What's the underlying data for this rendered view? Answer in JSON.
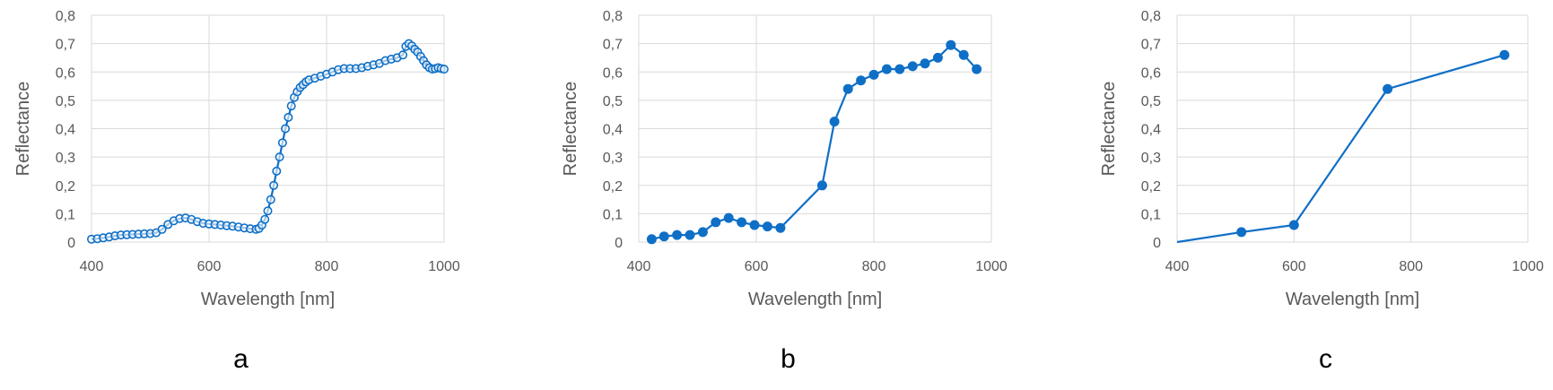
{
  "figure": {
    "series_color": "#0f6fc6",
    "y_tick_labels": [
      "0",
      "0,1",
      "0,2",
      "0,3",
      "0,4",
      "0,5",
      "0,6",
      "0,7",
      "0,8"
    ],
    "x_tick_labels": [
      "400",
      "600",
      "800",
      "1000"
    ]
  },
  "chart_data": [
    {
      "type": "line",
      "panel_label": "a",
      "xlabel": "Wavelength [nm]",
      "ylabel": "Reflectance",
      "xlim": [
        400,
        1000
      ],
      "ylim": [
        0,
        0.8
      ],
      "grid": true,
      "marker": "open-circle",
      "series": [
        {
          "name": "Reflectance",
          "x": [
            400,
            410,
            420,
            430,
            440,
            450,
            460,
            470,
            480,
            490,
            500,
            510,
            520,
            530,
            540,
            550,
            560,
            570,
            580,
            590,
            600,
            610,
            620,
            630,
            640,
            650,
            660,
            670,
            680,
            685,
            690,
            695,
            700,
            705,
            710,
            715,
            720,
            725,
            730,
            735,
            740,
            745,
            750,
            755,
            760,
            765,
            770,
            780,
            790,
            800,
            810,
            820,
            830,
            840,
            850,
            860,
            870,
            880,
            890,
            900,
            910,
            920,
            930,
            935,
            940,
            945,
            950,
            955,
            960,
            965,
            970,
            975,
            980,
            985,
            990,
            995,
            1000
          ],
          "y": [
            0.01,
            0.012,
            0.015,
            0.018,
            0.022,
            0.025,
            0.026,
            0.027,
            0.028,
            0.029,
            0.03,
            0.033,
            0.045,
            0.062,
            0.075,
            0.083,
            0.085,
            0.08,
            0.072,
            0.066,
            0.064,
            0.062,
            0.06,
            0.058,
            0.056,
            0.053,
            0.05,
            0.047,
            0.045,
            0.048,
            0.06,
            0.08,
            0.11,
            0.15,
            0.2,
            0.25,
            0.3,
            0.35,
            0.4,
            0.44,
            0.48,
            0.51,
            0.53,
            0.545,
            0.555,
            0.565,
            0.572,
            0.578,
            0.585,
            0.592,
            0.6,
            0.608,
            0.612,
            0.612,
            0.612,
            0.615,
            0.62,
            0.625,
            0.63,
            0.64,
            0.645,
            0.65,
            0.66,
            0.69,
            0.7,
            0.692,
            0.68,
            0.67,
            0.655,
            0.64,
            0.625,
            0.615,
            0.61,
            0.612,
            0.615,
            0.612,
            0.61
          ]
        }
      ]
    },
    {
      "type": "line",
      "panel_label": "b",
      "xlabel": "Wavelength [nm]",
      "ylabel": "Reflectance",
      "xlim": [
        400,
        1000
      ],
      "ylim": [
        0,
        0.8
      ],
      "grid": true,
      "marker": "filled-circle",
      "series": [
        {
          "name": "Reflectance",
          "x": [
            422,
            443,
            465,
            487,
            509,
            531,
            553,
            575,
            597,
            619,
            641,
            712,
            733,
            756,
            778,
            800,
            822,
            844,
            866,
            887,
            909,
            931,
            953,
            975
          ],
          "y": [
            0.01,
            0.02,
            0.025,
            0.025,
            0.035,
            0.07,
            0.085,
            0.07,
            0.06,
            0.055,
            0.05,
            0.2,
            0.425,
            0.54,
            0.57,
            0.59,
            0.61,
            0.61,
            0.62,
            0.63,
            0.65,
            0.695,
            0.66,
            0.61
          ]
        }
      ]
    },
    {
      "type": "line",
      "panel_label": "c",
      "xlabel": "Wavelength [nm]",
      "ylabel": "Reflectance",
      "xlim": [
        400,
        1000
      ],
      "ylim": [
        0,
        0.8
      ],
      "grid": true,
      "marker": "filled-circle",
      "series": [
        {
          "name": "Reflectance",
          "x": [
            400,
            510,
            600,
            760,
            960
          ],
          "y": [
            0.0,
            0.035,
            0.06,
            0.54,
            0.66
          ],
          "markers_from_index": 1
        }
      ]
    }
  ]
}
